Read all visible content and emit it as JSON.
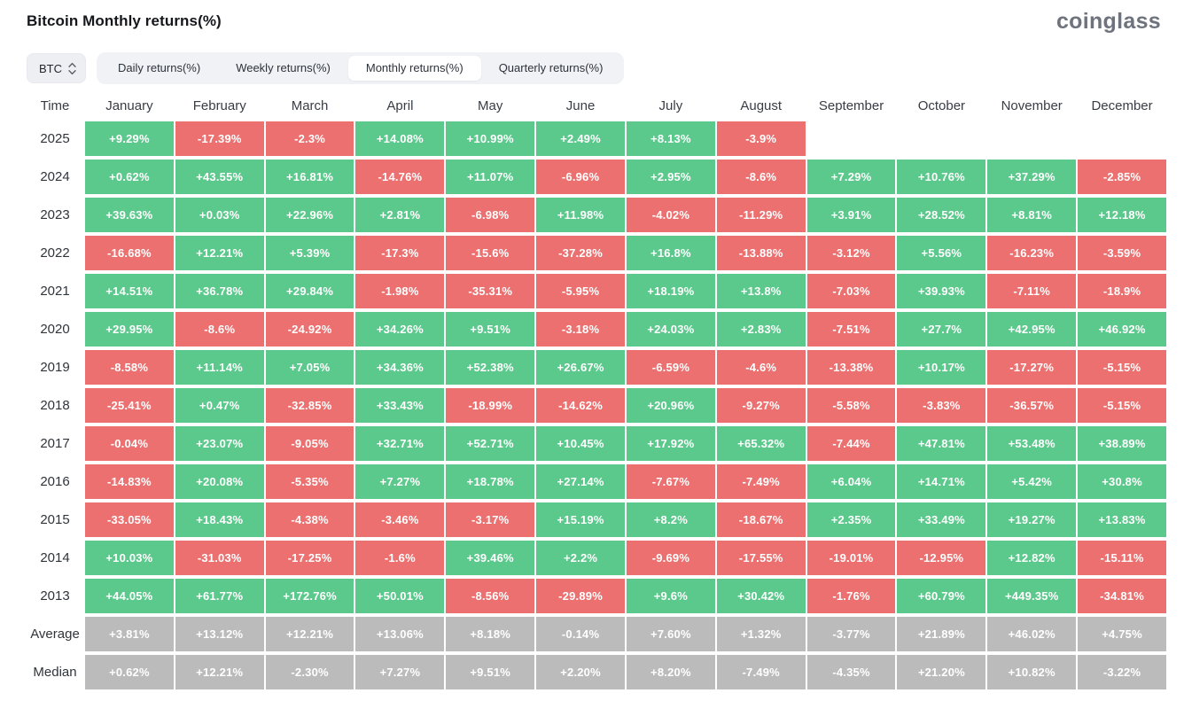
{
  "header": {
    "title": "Bitcoin Monthly returns(%)",
    "logo": "coinglass"
  },
  "controls": {
    "coin": {
      "label": "BTC",
      "icon": "updown-chevron-icon"
    },
    "tabs": [
      {
        "label": "Daily returns(%)",
        "active": false
      },
      {
        "label": "Weekly returns(%)",
        "active": false
      },
      {
        "label": "Monthly returns(%)",
        "active": true
      },
      {
        "label": "Quarterly returns(%)",
        "active": false
      }
    ]
  },
  "colors": {
    "positive": "#5CC98C",
    "negative": "#EC7070",
    "summary": "#BBBBBB"
  },
  "table": {
    "time_header": "Time",
    "columns": [
      "January",
      "February",
      "March",
      "April",
      "May",
      "June",
      "July",
      "August",
      "September",
      "October",
      "November",
      "December"
    ],
    "rows": [
      {
        "label": "2025",
        "type": "year",
        "values": [
          "+9.29%",
          "-17.39%",
          "-2.3%",
          "+14.08%",
          "+10.99%",
          "+2.49%",
          "+8.13%",
          "-3.9%",
          "",
          "",
          "",
          ""
        ]
      },
      {
        "label": "2024",
        "type": "year",
        "values": [
          "+0.62%",
          "+43.55%",
          "+16.81%",
          "-14.76%",
          "+11.07%",
          "-6.96%",
          "+2.95%",
          "-8.6%",
          "+7.29%",
          "+10.76%",
          "+37.29%",
          "-2.85%"
        ]
      },
      {
        "label": "2023",
        "type": "year",
        "values": [
          "+39.63%",
          "+0.03%",
          "+22.96%",
          "+2.81%",
          "-6.98%",
          "+11.98%",
          "-4.02%",
          "-11.29%",
          "+3.91%",
          "+28.52%",
          "+8.81%",
          "+12.18%"
        ]
      },
      {
        "label": "2022",
        "type": "year",
        "values": [
          "-16.68%",
          "+12.21%",
          "+5.39%",
          "-17.3%",
          "-15.6%",
          "-37.28%",
          "+16.8%",
          "-13.88%",
          "-3.12%",
          "+5.56%",
          "-16.23%",
          "-3.59%"
        ]
      },
      {
        "label": "2021",
        "type": "year",
        "values": [
          "+14.51%",
          "+36.78%",
          "+29.84%",
          "-1.98%",
          "-35.31%",
          "-5.95%",
          "+18.19%",
          "+13.8%",
          "-7.03%",
          "+39.93%",
          "-7.11%",
          "-18.9%"
        ]
      },
      {
        "label": "2020",
        "type": "year",
        "values": [
          "+29.95%",
          "-8.6%",
          "-24.92%",
          "+34.26%",
          "+9.51%",
          "-3.18%",
          "+24.03%",
          "+2.83%",
          "-7.51%",
          "+27.7%",
          "+42.95%",
          "+46.92%"
        ]
      },
      {
        "label": "2019",
        "type": "year",
        "values": [
          "-8.58%",
          "+11.14%",
          "+7.05%",
          "+34.36%",
          "+52.38%",
          "+26.67%",
          "-6.59%",
          "-4.6%",
          "-13.38%",
          "+10.17%",
          "-17.27%",
          "-5.15%"
        ]
      },
      {
        "label": "2018",
        "type": "year",
        "values": [
          "-25.41%",
          "+0.47%",
          "-32.85%",
          "+33.43%",
          "-18.99%",
          "-14.62%",
          "+20.96%",
          "-9.27%",
          "-5.58%",
          "-3.83%",
          "-36.57%",
          "-5.15%"
        ]
      },
      {
        "label": "2017",
        "type": "year",
        "values": [
          "-0.04%",
          "+23.07%",
          "-9.05%",
          "+32.71%",
          "+52.71%",
          "+10.45%",
          "+17.92%",
          "+65.32%",
          "-7.44%",
          "+47.81%",
          "+53.48%",
          "+38.89%"
        ]
      },
      {
        "label": "2016",
        "type": "year",
        "values": [
          "-14.83%",
          "+20.08%",
          "-5.35%",
          "+7.27%",
          "+18.78%",
          "+27.14%",
          "-7.67%",
          "-7.49%",
          "+6.04%",
          "+14.71%",
          "+5.42%",
          "+30.8%"
        ]
      },
      {
        "label": "2015",
        "type": "year",
        "values": [
          "-33.05%",
          "+18.43%",
          "-4.38%",
          "-3.46%",
          "-3.17%",
          "+15.19%",
          "+8.2%",
          "-18.67%",
          "+2.35%",
          "+33.49%",
          "+19.27%",
          "+13.83%"
        ]
      },
      {
        "label": "2014",
        "type": "year",
        "values": [
          "+10.03%",
          "-31.03%",
          "-17.25%",
          "-1.6%",
          "+39.46%",
          "+2.2%",
          "-9.69%",
          "-17.55%",
          "-19.01%",
          "-12.95%",
          "+12.82%",
          "-15.11%"
        ]
      },
      {
        "label": "2013",
        "type": "year",
        "values": [
          "+44.05%",
          "+61.77%",
          "+172.76%",
          "+50.01%",
          "-8.56%",
          "-29.89%",
          "+9.6%",
          "+30.42%",
          "-1.76%",
          "+60.79%",
          "+449.35%",
          "-34.81%"
        ]
      },
      {
        "label": "Average",
        "type": "summary",
        "values": [
          "+3.81%",
          "+13.12%",
          "+12.21%",
          "+13.06%",
          "+8.18%",
          "-0.14%",
          "+7.60%",
          "+1.32%",
          "-3.77%",
          "+21.89%",
          "+46.02%",
          "+4.75%"
        ]
      },
      {
        "label": "Median",
        "type": "summary",
        "values": [
          "+0.62%",
          "+12.21%",
          "-2.30%",
          "+7.27%",
          "+9.51%",
          "+2.20%",
          "+8.20%",
          "-7.49%",
          "-4.35%",
          "+21.20%",
          "+10.82%",
          "-3.22%"
        ]
      }
    ]
  }
}
